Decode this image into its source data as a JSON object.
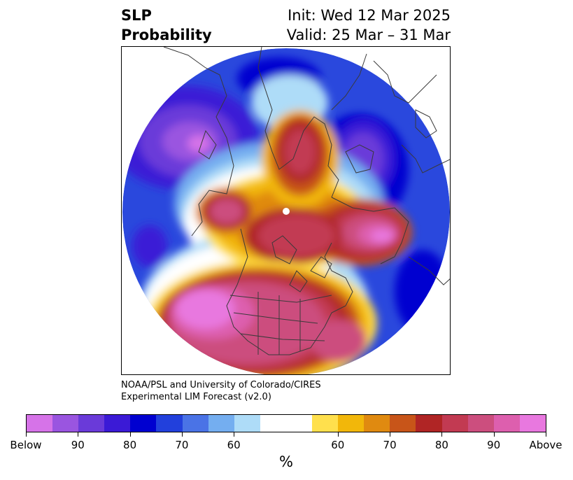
{
  "title": {
    "left_line1": "SLP",
    "left_line2": "Probability",
    "right_line1": "Init: Wed 12 Mar 2025",
    "right_line2": "Valid: 25 Mar – 31 Mar"
  },
  "credit": {
    "line1": "NOAA/PSL and University of Colorado/CIRES",
    "line2": "Experimental LIM Forecast (v2.0)"
  },
  "colorbar": {
    "colors": [
      "#d673e8",
      "#9a55e0",
      "#6a3ad9",
      "#3b1ad6",
      "#0000d0",
      "#2240dc",
      "#4a73e6",
      "#74aef0",
      "#aedcf8",
      "#ffffff",
      "#ffffff",
      "#ffe04d",
      "#f2b70a",
      "#e08a10",
      "#c85519",
      "#b02525",
      "#c23a52",
      "#cc4e7e",
      "#dd5fae",
      "#e878df"
    ],
    "tick_labels": [
      "Below",
      "90",
      "80",
      "70",
      "60",
      "60",
      "70",
      "80",
      "90",
      "Above"
    ],
    "units": "%"
  },
  "map": {
    "projection": "north-polar-stereographic",
    "coastline_color": "#3a3a3a"
  }
}
